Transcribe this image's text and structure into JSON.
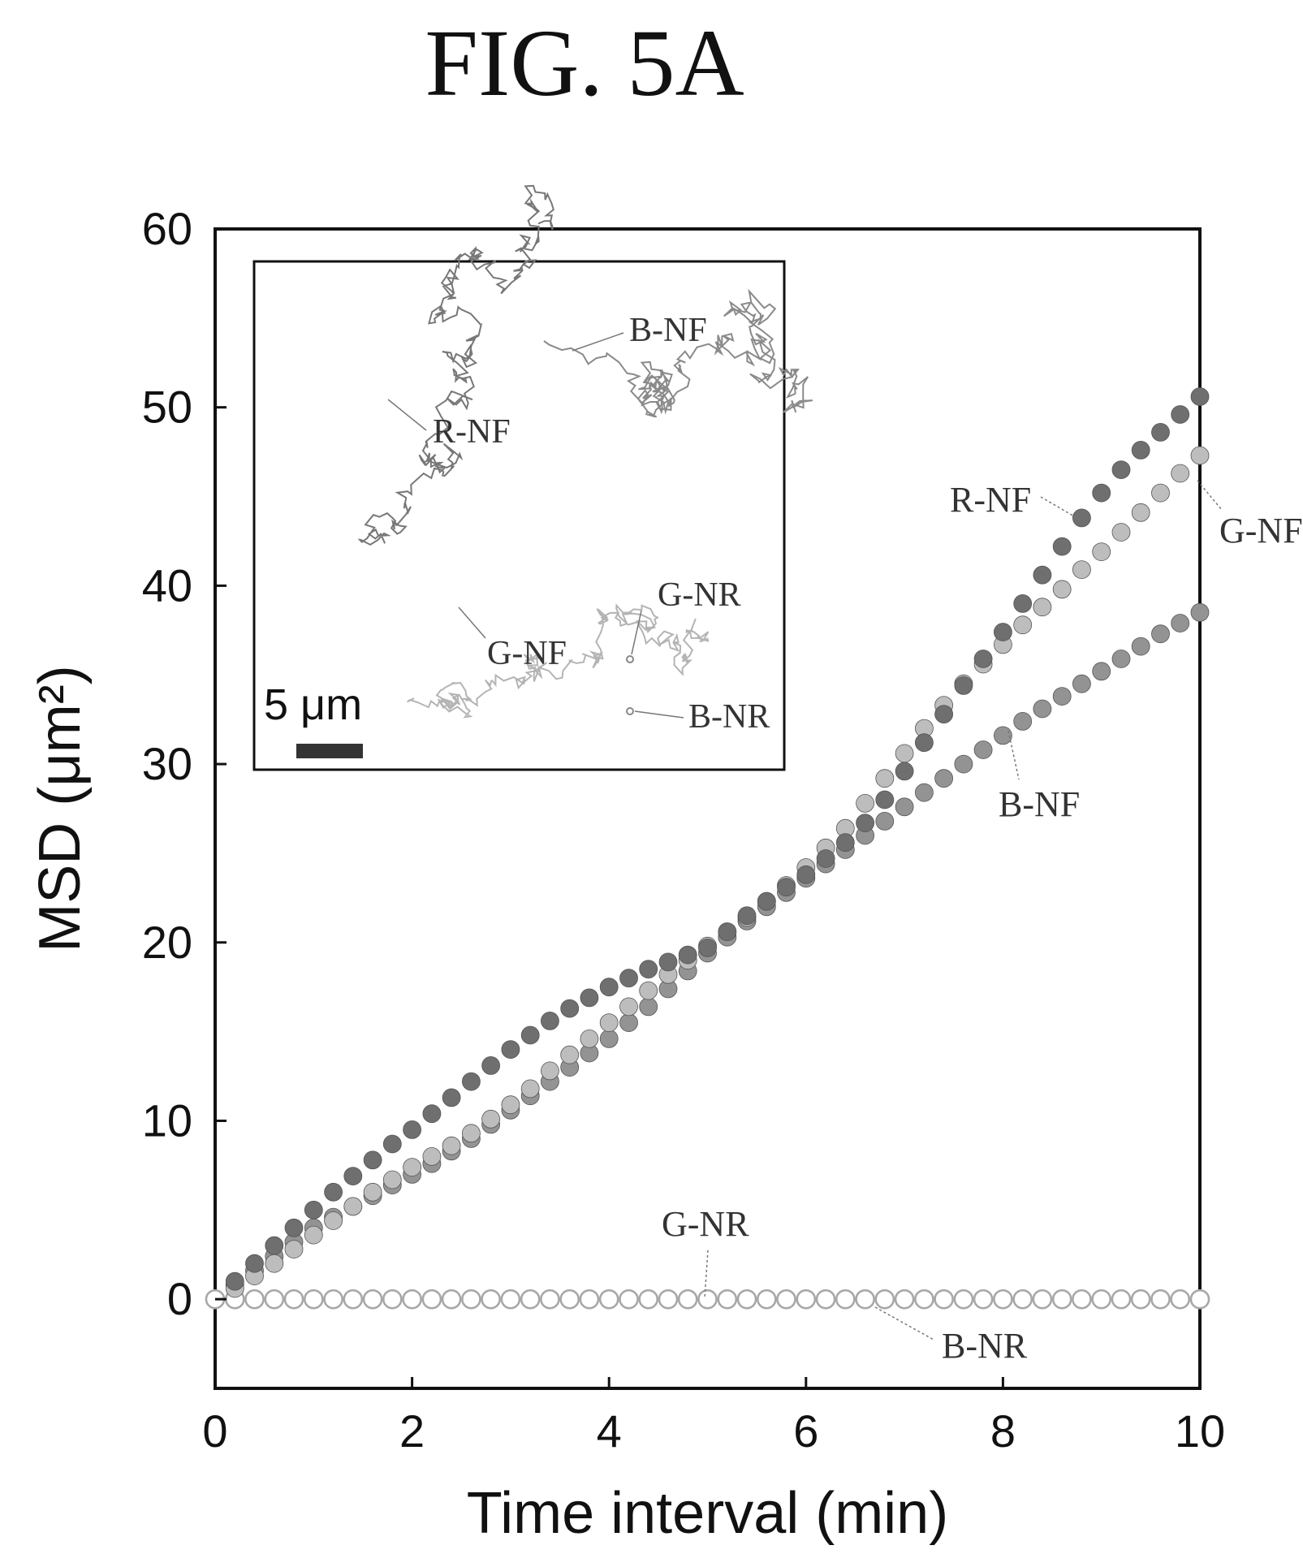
{
  "figure_title": "FIG. 5A",
  "colors": {
    "R-NF": "#6f6f6f",
    "G-NF": "#bdbdbd",
    "B-NF": "#939393",
    "NR_stroke": "#a8a8a8",
    "axis": "#111111"
  },
  "chart_data": {
    "type": "scatter",
    "title": "",
    "xlabel": "Time interval (min)",
    "ylabel": "MSD (μm²)",
    "xlim": [
      0,
      10
    ],
    "ylim": [
      -5,
      60
    ],
    "xticks": [
      0,
      2,
      4,
      6,
      8,
      10
    ],
    "yticks": [
      0,
      10,
      20,
      30,
      40,
      50,
      60
    ],
    "grid": false,
    "series": [
      {
        "name": "R-NF",
        "x": [
          0.2,
          0.4,
          0.6,
          0.8,
          1.0,
          1.2,
          1.4,
          1.6,
          1.8,
          2.0,
          2.2,
          2.4,
          2.6,
          2.8,
          3.0,
          3.2,
          3.4,
          3.6,
          3.8,
          4.0,
          4.2,
          4.4,
          4.6,
          4.8,
          5.0,
          5.2,
          5.4,
          5.6,
          5.8,
          6.0,
          6.2,
          6.4,
          6.6,
          6.8,
          7.0,
          7.2,
          7.4,
          7.6,
          7.8,
          8.0,
          8.2,
          8.4,
          8.6,
          8.8,
          9.0,
          9.2,
          9.4,
          9.6,
          9.8,
          10.0
        ],
        "y": [
          1.0,
          2.0,
          3.0,
          4.0,
          5.0,
          6.0,
          6.9,
          7.8,
          8.7,
          9.5,
          10.4,
          11.3,
          12.2,
          13.1,
          14.0,
          14.8,
          15.6,
          16.3,
          16.9,
          17.5,
          18.0,
          18.5,
          18.9,
          19.3,
          19.7,
          20.6,
          21.5,
          22.3,
          23.1,
          23.8,
          24.7,
          25.6,
          26.7,
          28.0,
          29.6,
          31.2,
          32.8,
          34.4,
          35.9,
          37.4,
          39.0,
          40.6,
          42.2,
          43.8,
          45.2,
          46.5,
          47.6,
          48.6,
          49.6,
          50.6
        ]
      },
      {
        "name": "G-NF",
        "x": [
          0.2,
          0.4,
          0.6,
          0.8,
          1.0,
          1.2,
          1.4,
          1.6,
          1.8,
          2.0,
          2.2,
          2.4,
          2.6,
          2.8,
          3.0,
          3.2,
          3.4,
          3.6,
          3.8,
          4.0,
          4.2,
          4.4,
          4.6,
          4.8,
          5.0,
          5.2,
          5.4,
          5.6,
          5.8,
          6.0,
          6.2,
          6.4,
          6.6,
          6.8,
          7.0,
          7.2,
          7.4,
          7.6,
          7.8,
          8.0,
          8.2,
          8.4,
          8.6,
          8.8,
          9.0,
          9.2,
          9.4,
          9.6,
          9.8,
          10.0
        ],
        "y": [
          0.6,
          1.3,
          2.0,
          2.8,
          3.6,
          4.4,
          5.2,
          6.0,
          6.7,
          7.4,
          8.0,
          8.6,
          9.3,
          10.1,
          10.9,
          11.8,
          12.8,
          13.7,
          14.6,
          15.5,
          16.4,
          17.3,
          18.2,
          19.0,
          19.8,
          20.6,
          21.4,
          22.3,
          23.2,
          24.2,
          25.3,
          26.4,
          27.8,
          29.2,
          30.6,
          32.0,
          33.3,
          34.5,
          35.6,
          36.7,
          37.8,
          38.8,
          39.8,
          40.9,
          41.9,
          43.0,
          44.1,
          45.2,
          46.3,
          47.3
        ]
      },
      {
        "name": "B-NF",
        "x": [
          0.2,
          0.4,
          0.6,
          0.8,
          1.0,
          1.2,
          1.4,
          1.6,
          1.8,
          2.0,
          2.2,
          2.4,
          2.6,
          2.8,
          3.0,
          3.2,
          3.4,
          3.6,
          3.8,
          4.0,
          4.2,
          4.4,
          4.6,
          4.8,
          5.0,
          5.2,
          5.4,
          5.6,
          5.8,
          6.0,
          6.2,
          6.4,
          6.6,
          6.8,
          7.0,
          7.2,
          7.4,
          7.6,
          7.8,
          8.0,
          8.2,
          8.4,
          8.6,
          8.8,
          9.0,
          9.2,
          9.4,
          9.6,
          9.8,
          10.0
        ],
        "y": [
          0.8,
          1.6,
          2.4,
          3.2,
          4.0,
          4.6,
          5.2,
          5.8,
          6.4,
          7.0,
          7.6,
          8.3,
          9.0,
          9.8,
          10.6,
          11.4,
          12.2,
          13.0,
          13.8,
          14.6,
          15.5,
          16.4,
          17.4,
          18.4,
          19.4,
          20.3,
          21.2,
          22.0,
          22.8,
          23.6,
          24.4,
          25.2,
          26.0,
          26.8,
          27.6,
          28.4,
          29.2,
          30.0,
          30.8,
          31.6,
          32.4,
          33.1,
          33.8,
          34.5,
          35.2,
          35.9,
          36.6,
          37.3,
          37.9,
          38.5
        ]
      },
      {
        "name": "G-NR",
        "x": [
          0.0,
          0.2,
          0.4,
          0.6,
          0.8,
          1.0,
          1.2,
          1.4,
          1.6,
          1.8,
          2.0,
          2.2,
          2.4,
          2.6,
          2.8,
          3.0,
          3.2,
          3.4,
          3.6,
          3.8,
          4.0,
          4.2,
          4.4,
          4.6,
          4.8,
          5.0,
          5.2,
          5.4,
          5.6,
          5.8,
          6.0,
          6.2,
          6.4,
          6.6,
          6.8,
          7.0,
          7.2,
          7.4,
          7.6,
          7.8,
          8.0,
          8.2,
          8.4,
          8.6,
          8.8,
          9.0,
          9.2,
          9.4,
          9.6,
          9.8,
          10.0
        ],
        "y": [
          0,
          0,
          0,
          0,
          0,
          0,
          0,
          0,
          0,
          0,
          0,
          0,
          0,
          0,
          0,
          0,
          0,
          0,
          0,
          0,
          0,
          0,
          0,
          0,
          0,
          0,
          0,
          0,
          0,
          0,
          0,
          0,
          0,
          0,
          0,
          0,
          0,
          0,
          0,
          0,
          0,
          0,
          0,
          0,
          0,
          0,
          0,
          0,
          0,
          0,
          0
        ]
      },
      {
        "name": "B-NR",
        "x": [
          0.0,
          0.2,
          0.4,
          0.6,
          0.8,
          1.0,
          1.2,
          1.4,
          1.6,
          1.8,
          2.0,
          2.2,
          2.4,
          2.6,
          2.8,
          3.0,
          3.2,
          3.4,
          3.6,
          3.8,
          4.0,
          4.2,
          4.4,
          4.6,
          4.8,
          5.0,
          5.2,
          5.4,
          5.6,
          5.8,
          6.0,
          6.2,
          6.4,
          6.6,
          6.8,
          7.0,
          7.2,
          7.4,
          7.6,
          7.8,
          8.0,
          8.2,
          8.4,
          8.6,
          8.8,
          9.0,
          9.2,
          9.4,
          9.6,
          9.8,
          10.0
        ],
        "y": [
          0,
          0,
          0,
          0,
          0,
          0,
          0,
          0,
          0,
          0,
          0,
          0,
          0,
          0,
          0,
          0,
          0,
          0,
          0,
          0,
          0,
          0,
          0,
          0,
          0,
          0,
          0,
          0,
          0,
          0,
          0,
          0,
          0,
          0,
          0,
          0,
          0,
          0,
          0,
          0,
          0,
          0,
          0,
          0,
          0,
          0,
          0,
          0,
          0,
          0,
          0
        ]
      }
    ],
    "annotations": [
      "R-NF",
      "G-NF",
      "B-NF",
      "G-NR",
      "B-NR"
    ],
    "inset": {
      "labels": [
        "R-NF",
        "B-NF",
        "G-NF",
        "G-NR",
        "B-NR"
      ],
      "scale_bar_label": "5 μm"
    }
  }
}
